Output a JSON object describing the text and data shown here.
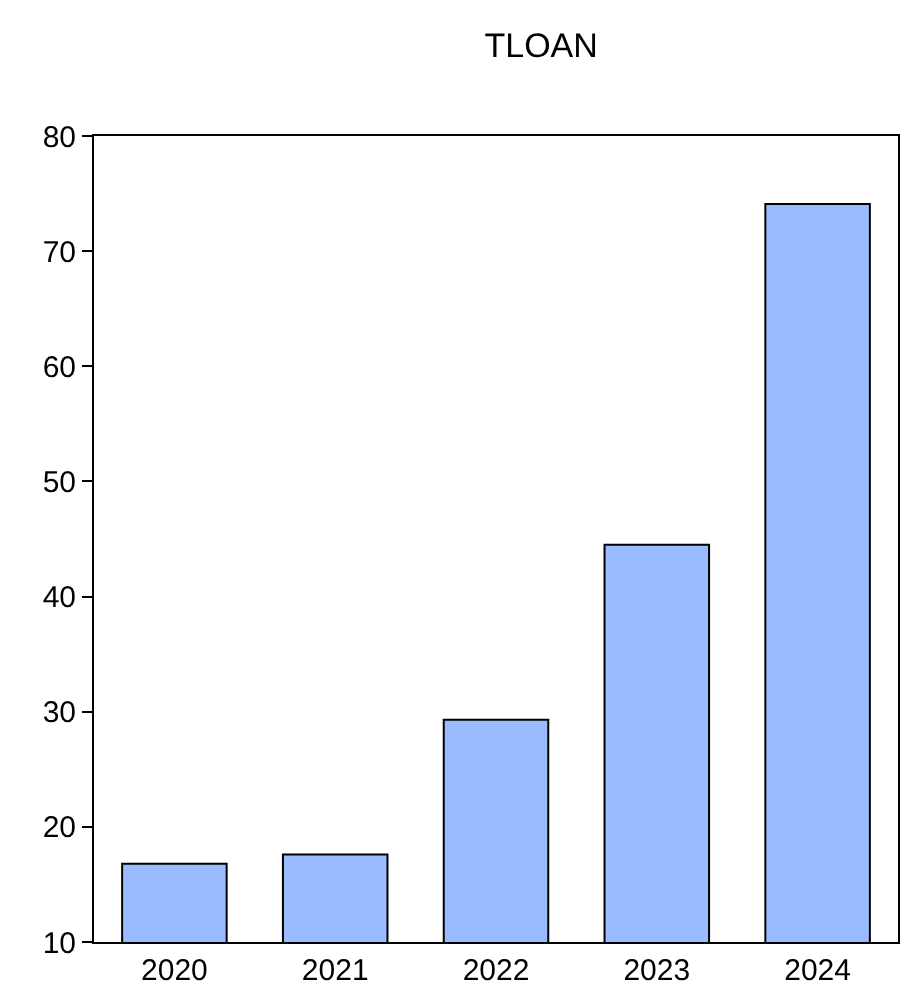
{
  "chart_data": {
    "type": "bar",
    "title": "TLOAN",
    "categories": [
      "2020",
      "2021",
      "2022",
      "2023",
      "2024"
    ],
    "values": [
      16.8,
      17.6,
      29.3,
      44.5,
      74.1
    ],
    "color": "#99bbff",
    "ylim": [
      10,
      80
    ],
    "yticks": [
      10,
      20,
      30,
      40,
      50,
      60,
      70,
      80
    ]
  }
}
